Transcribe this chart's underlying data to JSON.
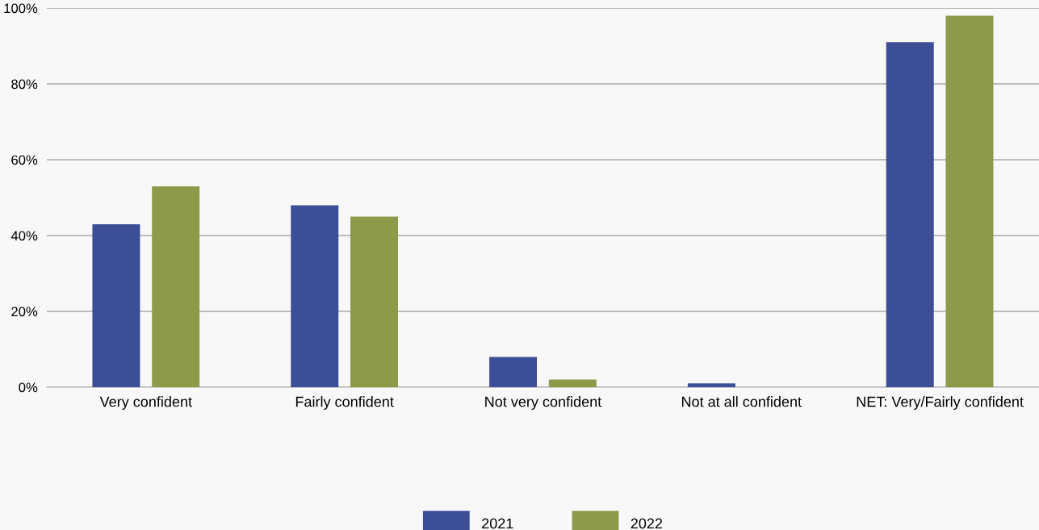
{
  "chart_data": {
    "type": "bar",
    "categories": [
      "Very confident",
      "Fairly confident",
      "Not very confident",
      "Not at all confident",
      "NET: Very/Fairly confident"
    ],
    "series": [
      {
        "name": "2021",
        "color": "#3c4e96",
        "values": [
          43,
          48,
          8,
          1,
          91
        ]
      },
      {
        "name": "2022",
        "color": "#8c9a4a",
        "values": [
          53,
          45,
          2,
          0,
          98
        ]
      }
    ],
    "ylim": [
      0,
      100
    ],
    "yticks": [
      {
        "value": 0,
        "label": "0%"
      },
      {
        "value": 20,
        "label": "20%"
      },
      {
        "value": 40,
        "label": "40%"
      },
      {
        "value": 60,
        "label": "60%"
      },
      {
        "value": 80,
        "label": "80%"
      },
      {
        "value": 100,
        "label": "100%"
      }
    ],
    "grid": "y",
    "legend": "bottom"
  }
}
